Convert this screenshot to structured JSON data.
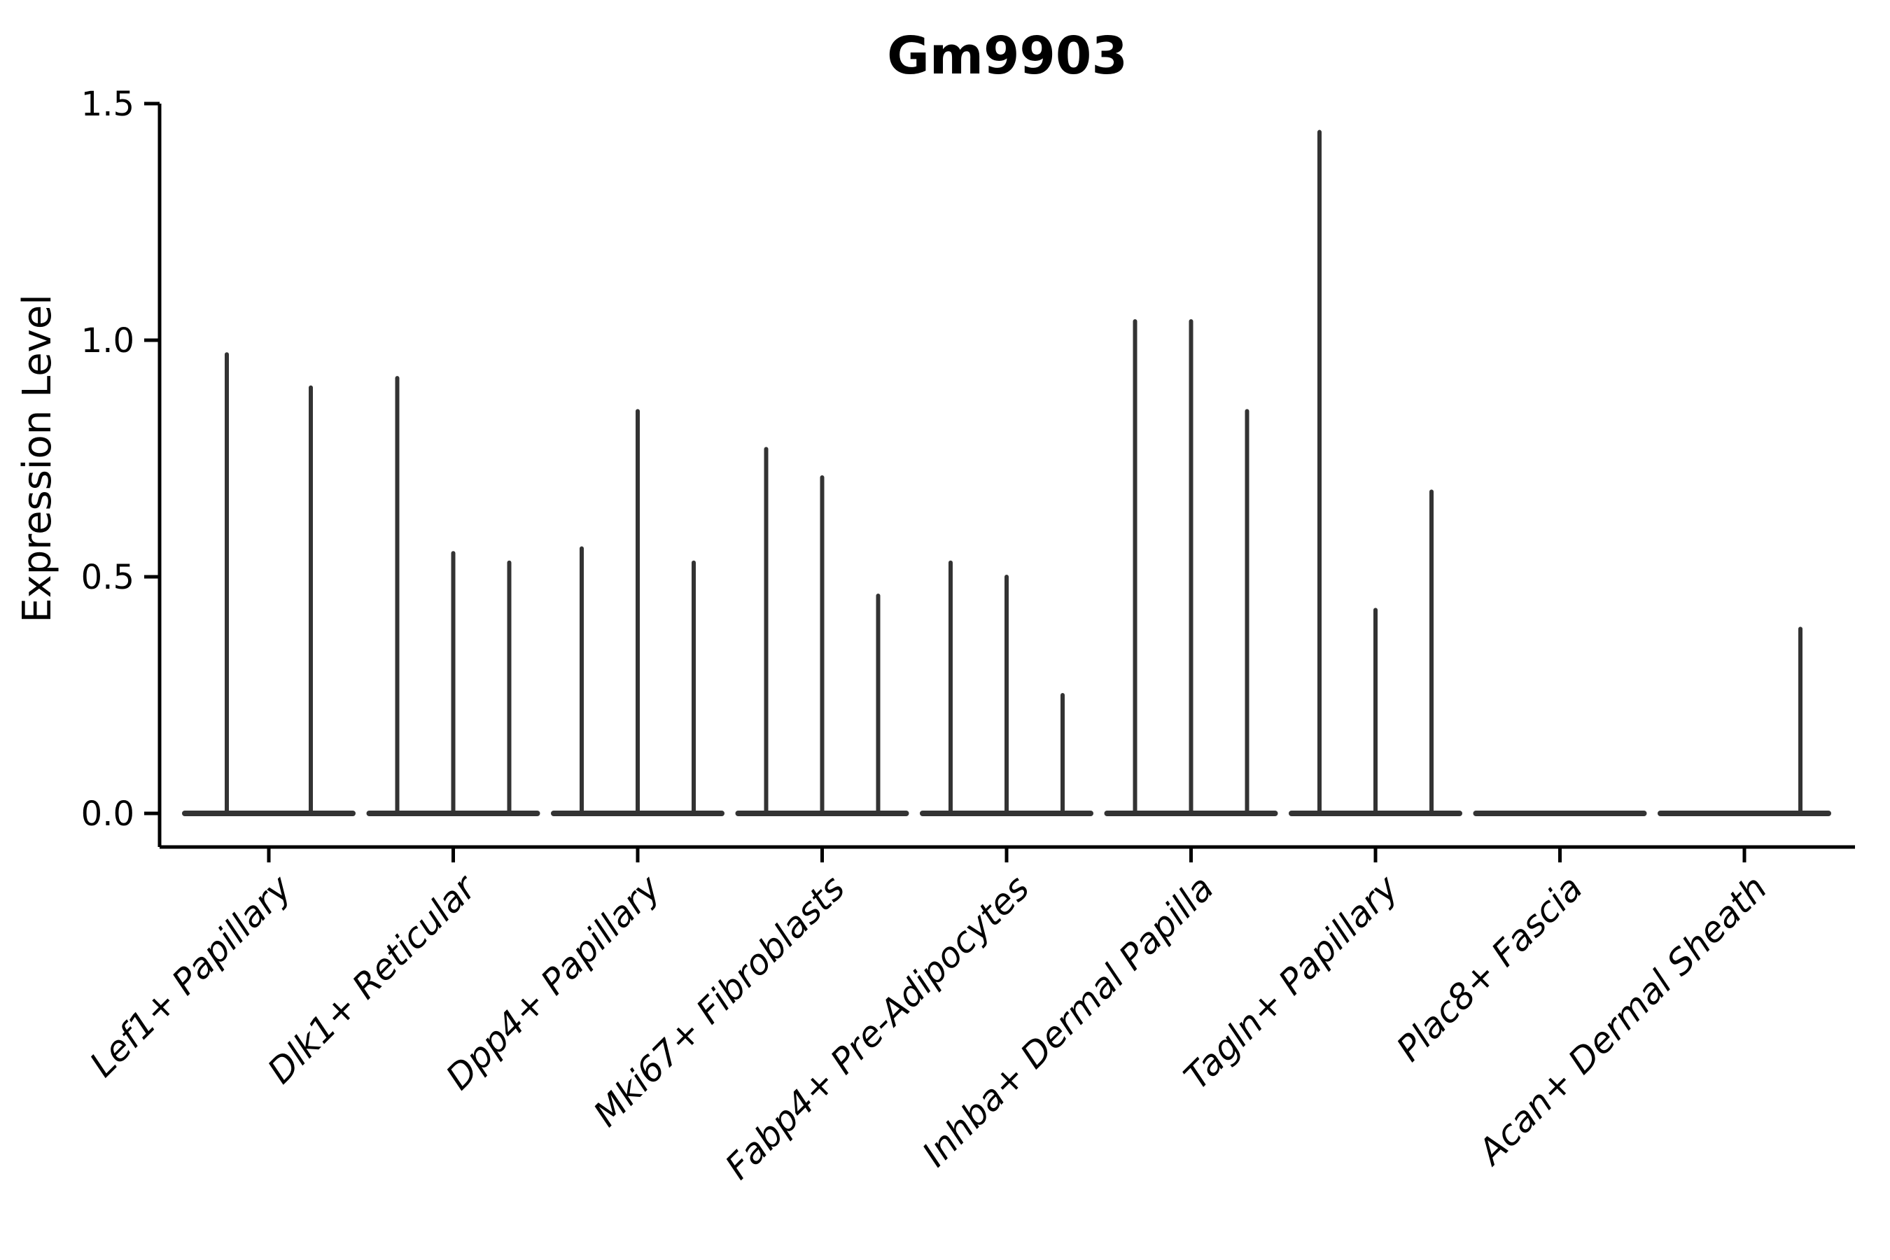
{
  "chart_data": {
    "type": "violin",
    "title": "Gm9903",
    "ylabel": "Expression Level",
    "xlabel": "",
    "ylim": [
      0.0,
      1.5
    ],
    "yticks": [
      0.0,
      0.5,
      1.0,
      1.5
    ],
    "ytick_labels": [
      "0.0",
      "0.5",
      "1.0",
      "1.5"
    ],
    "grid": false,
    "legend": "none",
    "violin_color": "#333333",
    "axis_color": "#000000",
    "background_color": "#ffffff",
    "categories": [
      {
        "label": "Lef1+ Papillary",
        "violin_max": [
          0.97,
          0.9
        ]
      },
      {
        "label": "Dlk1+ Reticular",
        "violin_max": [
          0.92,
          0.55,
          0.53
        ]
      },
      {
        "label": "Dpp4+ Papillary",
        "violin_max": [
          0.56,
          0.85,
          0.53
        ]
      },
      {
        "label": "Mki67+ Fibroblasts",
        "violin_max": [
          0.77,
          0.71,
          0.46
        ]
      },
      {
        "label": "Fabp4+ Pre-Adipocytes",
        "violin_max": [
          0.53,
          0.5,
          0.25
        ]
      },
      {
        "label": "Inhba+ Dermal Papilla",
        "violin_max": [
          1.04,
          1.04,
          0.85
        ]
      },
      {
        "label": "Tagln+ Papillary",
        "violin_max": [
          1.44,
          0.43,
          0.68
        ]
      },
      {
        "label": "Plac8+ Fascia",
        "violin_max": [
          0.0,
          0.0,
          0.0
        ]
      },
      {
        "label": "Acan+ Dermal Sheath",
        "violin_max": [
          0.0,
          0.0,
          0.39
        ]
      }
    ]
  }
}
